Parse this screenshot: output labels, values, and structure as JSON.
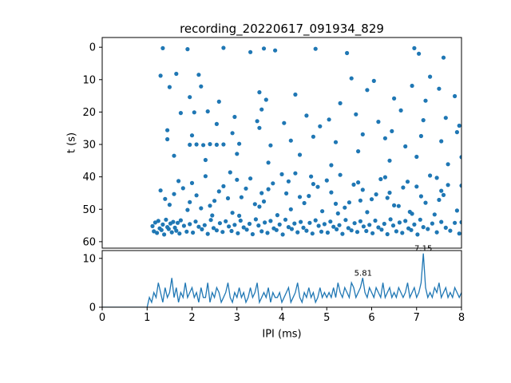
{
  "figure": {
    "background": "#ffffff"
  },
  "chart_data": [
    {
      "type": "scatter",
      "title": "recording_20220617_091934_829",
      "xlabel": "",
      "ylabel": "t (s)",
      "xlim": [
        0,
        8
      ],
      "ylim": [
        0,
        60
      ],
      "ylim_display": [
        -3,
        62
      ],
      "inverted_y": true,
      "color": "#1f77b4",
      "x_ticks": [
        0,
        1,
        2,
        3,
        4,
        5,
        6,
        7,
        8
      ],
      "y_ticks": [
        0,
        10,
        20,
        30,
        40,
        50,
        60
      ],
      "points": [
        [
          1.12,
          55.2
        ],
        [
          1.15,
          56.8
        ],
        [
          1.18,
          54.1
        ],
        [
          1.22,
          57.3
        ],
        [
          1.25,
          53.6
        ],
        [
          1.28,
          55.9
        ],
        [
          1.32,
          56.4
        ],
        [
          1.35,
          54.7
        ],
        [
          1.38,
          57.8
        ],
        [
          1.42,
          53.2
        ],
        [
          1.45,
          55.5
        ],
        [
          1.48,
          56.1
        ],
        [
          1.52,
          54.4
        ],
        [
          1.55,
          57.1
        ],
        [
          1.58,
          53.9
        ],
        [
          1.62,
          55.7
        ],
        [
          1.65,
          56.6
        ],
        [
          1.68,
          54.2
        ],
        [
          1.72,
          57.5
        ],
        [
          1.75,
          53.4
        ],
        [
          1.82,
          55.1
        ],
        [
          1.88,
          56.9
        ],
        [
          1.95,
          54.6
        ],
        [
          2.02,
          57.2
        ],
        [
          2.08,
          53.8
        ],
        [
          2.15,
          55.4
        ],
        [
          2.22,
          56.2
        ],
        [
          2.28,
          54.9
        ],
        [
          2.35,
          57.6
        ],
        [
          2.42,
          53.3
        ],
        [
          2.48,
          55.8
        ],
        [
          2.55,
          56.5
        ],
        [
          2.62,
          54.3
        ],
        [
          2.68,
          57.0
        ],
        [
          2.75,
          53.7
        ],
        [
          2.82,
          55.3
        ],
        [
          2.88,
          56.7
        ],
        [
          2.95,
          54.8
        ],
        [
          3.02,
          57.4
        ],
        [
          3.08,
          53.5
        ],
        [
          3.15,
          55.6
        ],
        [
          3.22,
          56.3
        ],
        [
          3.28,
          54.5
        ],
        [
          3.35,
          57.7
        ],
        [
          3.42,
          53.1
        ],
        [
          3.48,
          55.0
        ],
        [
          3.55,
          56.8
        ],
        [
          3.62,
          54.1
        ],
        [
          3.68,
          57.3
        ],
        [
          3.75,
          53.6
        ],
        [
          3.82,
          55.9
        ],
        [
          3.88,
          56.4
        ],
        [
          3.95,
          54.7
        ],
        [
          4.02,
          57.8
        ],
        [
          4.08,
          53.2
        ],
        [
          4.15,
          55.5
        ],
        [
          4.22,
          56.1
        ],
        [
          4.28,
          54.4
        ],
        [
          4.35,
          57.1
        ],
        [
          4.42,
          53.9
        ],
        [
          4.48,
          55.7
        ],
        [
          4.55,
          56.6
        ],
        [
          4.62,
          54.2
        ],
        [
          4.68,
          57.5
        ],
        [
          4.75,
          53.4
        ],
        [
          4.82,
          55.1
        ],
        [
          4.88,
          56.9
        ],
        [
          4.95,
          54.6
        ],
        [
          5.02,
          57.2
        ],
        [
          5.08,
          53.8
        ],
        [
          5.15,
          55.4
        ],
        [
          5.22,
          56.2
        ],
        [
          5.28,
          54.9
        ],
        [
          5.35,
          57.6
        ],
        [
          5.42,
          53.3
        ],
        [
          5.48,
          55.8
        ],
        [
          5.55,
          56.5
        ],
        [
          5.62,
          54.3
        ],
        [
          5.68,
          57.0
        ],
        [
          5.75,
          53.7
        ],
        [
          5.82,
          55.3
        ],
        [
          5.88,
          56.7
        ],
        [
          5.95,
          54.8
        ],
        [
          6.02,
          57.4
        ],
        [
          6.08,
          53.5
        ],
        [
          6.15,
          55.6
        ],
        [
          6.22,
          56.3
        ],
        [
          6.28,
          54.5
        ],
        [
          6.35,
          57.7
        ],
        [
          6.42,
          53.1
        ],
        [
          6.48,
          55.0
        ],
        [
          6.55,
          56.8
        ],
        [
          6.62,
          54.1
        ],
        [
          6.68,
          57.3
        ],
        [
          6.75,
          53.6
        ],
        [
          6.82,
          55.9
        ],
        [
          6.88,
          56.4
        ],
        [
          6.95,
          54.7
        ],
        [
          7.02,
          57.8
        ],
        [
          7.08,
          53.2
        ],
        [
          7.15,
          55.5
        ],
        [
          7.25,
          56.1
        ],
        [
          7.35,
          54.4
        ],
        [
          7.45,
          57.1
        ],
        [
          7.55,
          53.9
        ],
        [
          7.65,
          55.7
        ],
        [
          7.75,
          56.6
        ],
        [
          7.85,
          54.2
        ],
        [
          7.95,
          57.5
        ],
        [
          8.0,
          54.0
        ],
        [
          1.3,
          44.2
        ],
        [
          1.5,
          48.6
        ],
        [
          1.7,
          41.3
        ],
        [
          1.9,
          50.2
        ],
        [
          2.1,
          45.7
        ],
        [
          2.3,
          39.8
        ],
        [
          2.5,
          47.4
        ],
        [
          2.7,
          42.9
        ],
        [
          2.9,
          51.1
        ],
        [
          3.1,
          46.3
        ],
        [
          3.3,
          40.5
        ],
        [
          3.5,
          49.2
        ],
        [
          3.7,
          43.8
        ],
        [
          3.9,
          51.8
        ],
        [
          4.1,
          45.1
        ],
        [
          4.3,
          38.9
        ],
        [
          4.5,
          48.1
        ],
        [
          4.7,
          42.2
        ],
        [
          4.9,
          50.6
        ],
        [
          5.1,
          44.8
        ],
        [
          5.3,
          39.4
        ],
        [
          5.5,
          47.9
        ],
        [
          5.7,
          41.7
        ],
        [
          5.9,
          50.9
        ],
        [
          6.1,
          45.4
        ],
        [
          6.3,
          40.1
        ],
        [
          6.5,
          48.8
        ],
        [
          6.7,
          43.3
        ],
        [
          6.9,
          51.4
        ],
        [
          7.1,
          46.0
        ],
        [
          7.3,
          39.6
        ],
        [
          7.5,
          47.1
        ],
        [
          7.7,
          42.5
        ],
        [
          7.9,
          50.4
        ],
        [
          1.4,
          46.8
        ],
        [
          1.8,
          43.5
        ],
        [
          2.2,
          49.7
        ],
        [
          2.6,
          44.5
        ],
        [
          3.0,
          40.9
        ],
        [
          3.4,
          48.4
        ],
        [
          3.8,
          42.0
        ],
        [
          4.2,
          50.0
        ],
        [
          4.6,
          45.9
        ],
        [
          5.0,
          41.1
        ],
        [
          5.4,
          49.5
        ],
        [
          5.8,
          44.0
        ],
        [
          6.2,
          40.7
        ],
        [
          6.6,
          49.0
        ],
        [
          7.0,
          43.0
        ],
        [
          7.4,
          51.6
        ],
        [
          1.6,
          45.3
        ],
        [
          2.0,
          41.9
        ],
        [
          2.4,
          48.9
        ],
        [
          2.8,
          46.6
        ],
        [
          3.2,
          43.6
        ],
        [
          3.6,
          47.6
        ],
        [
          4.0,
          39.2
        ],
        [
          4.4,
          46.2
        ],
        [
          4.8,
          43.1
        ],
        [
          5.2,
          48.3
        ],
        [
          5.6,
          42.4
        ],
        [
          6.0,
          46.9
        ],
        [
          6.4,
          44.9
        ],
        [
          6.8,
          41.5
        ],
        [
          7.2,
          48.0
        ],
        [
          7.6,
          45.6
        ],
        [
          8.0,
          42.7
        ],
        [
          2.45,
          51.9
        ],
        [
          3.55,
          45.0
        ],
        [
          4.65,
          39.9
        ],
        [
          5.75,
          47.3
        ],
        [
          6.85,
          50.8
        ],
        [
          7.55,
          44.3
        ],
        [
          1.95,
          47.8
        ],
        [
          3.05,
          52.0
        ],
        [
          4.15,
          41.4
        ],
        [
          5.25,
          51.3
        ],
        [
          6.35,
          46.5
        ],
        [
          7.45,
          40.3
        ],
        [
          2.85,
          38.6
        ],
        [
          1.35,
          0.3
        ],
        [
          1.9,
          0.6
        ],
        [
          2.7,
          0.2
        ],
        [
          3.3,
          1.5
        ],
        [
          3.6,
          0.4
        ],
        [
          3.85,
          1.0
        ],
        [
          4.75,
          0.5
        ],
        [
          5.45,
          1.8
        ],
        [
          6.95,
          0.3
        ],
        [
          7.05,
          2.0
        ],
        [
          7.6,
          3.2
        ],
        [
          1.3,
          8.8
        ],
        [
          1.5,
          12.3
        ],
        [
          1.65,
          8.2
        ],
        [
          2.15,
          8.5
        ],
        [
          2.2,
          12.1
        ],
        [
          1.95,
          15.4
        ],
        [
          2.6,
          16.8
        ],
        [
          3.5,
          13.9
        ],
        [
          3.65,
          16.2
        ],
        [
          4.3,
          14.6
        ],
        [
          5.3,
          17.3
        ],
        [
          5.9,
          13.2
        ],
        [
          6.5,
          15.8
        ],
        [
          6.9,
          11.9
        ],
        [
          7.2,
          16.5
        ],
        [
          7.5,
          12.8
        ],
        [
          7.85,
          15.1
        ],
        [
          5.55,
          9.6
        ],
        [
          6.05,
          10.4
        ],
        [
          7.3,
          9.1
        ],
        [
          1.75,
          20.3
        ],
        [
          2.05,
          20.1
        ],
        [
          2.35,
          19.8
        ],
        [
          2.95,
          21.5
        ],
        [
          3.45,
          22.8
        ],
        [
          3.55,
          19.2
        ],
        [
          4.05,
          23.4
        ],
        [
          4.55,
          21.1
        ],
        [
          5.05,
          22.3
        ],
        [
          5.65,
          20.7
        ],
        [
          6.15,
          23.0
        ],
        [
          6.65,
          19.5
        ],
        [
          7.15,
          22.5
        ],
        [
          7.65,
          21.8
        ],
        [
          7.95,
          24.2
        ],
        [
          3.5,
          24.9
        ],
        [
          2.55,
          23.7
        ],
        [
          1.45,
          25.6
        ],
        [
          4.85,
          24.4
        ],
        [
          6.45,
          25.9
        ],
        [
          1.95,
          30.1
        ],
        [
          2.1,
          30.0
        ],
        [
          2.25,
          30.2
        ],
        [
          2.4,
          29.9
        ],
        [
          2.55,
          30.1
        ],
        [
          2.7,
          30.0
        ],
        [
          3.05,
          29.8
        ],
        [
          3.75,
          30.3
        ],
        [
          1.45,
          28.4
        ],
        [
          2.0,
          27.2
        ],
        [
          2.9,
          26.5
        ],
        [
          4.2,
          28.8
        ],
        [
          4.7,
          27.6
        ],
        [
          5.2,
          29.3
        ],
        [
          5.8,
          26.9
        ],
        [
          6.3,
          28.1
        ],
        [
          6.75,
          30.6
        ],
        [
          7.1,
          27.4
        ],
        [
          7.55,
          29.0
        ],
        [
          7.9,
          26.2
        ],
        [
          1.6,
          33.5
        ],
        [
          2.3,
          34.8
        ],
        [
          3.0,
          32.9
        ],
        [
          3.7,
          35.6
        ],
        [
          4.4,
          33.2
        ],
        [
          5.1,
          36.4
        ],
        [
          5.7,
          32.1
        ],
        [
          6.4,
          35.0
        ],
        [
          7.0,
          33.8
        ],
        [
          7.7,
          36.1
        ],
        [
          8.0,
          33.9
        ]
      ]
    },
    {
      "type": "line",
      "title": "",
      "xlabel": "IPI (ms)",
      "ylabel": "",
      "xlim": [
        0,
        8
      ],
      "ylim": [
        0,
        11.6
      ],
      "color": "#1f77b4",
      "x_ticks": [
        0,
        1,
        2,
        3,
        4,
        5,
        6,
        7,
        8
      ],
      "y_ticks": [
        0,
        10
      ],
      "x_start": 0,
      "x_step": 0.05,
      "y": [
        0,
        0,
        0,
        0,
        0,
        0,
        0,
        0,
        0,
        0,
        0,
        0,
        0,
        0,
        0,
        0,
        0,
        0,
        0,
        0,
        0,
        2,
        1,
        3,
        2,
        5,
        3,
        1,
        4,
        2,
        3,
        6,
        2,
        4,
        1,
        3,
        2,
        5,
        2,
        3,
        4,
        2,
        3,
        1,
        4,
        2,
        2,
        5,
        1,
        3,
        2,
        4,
        3,
        1,
        2,
        3,
        5,
        2,
        1,
        3,
        2,
        4,
        2,
        3,
        1,
        2,
        4,
        2,
        3,
        5,
        1,
        2,
        3,
        2,
        4,
        1,
        3,
        2,
        2,
        3,
        1,
        2,
        3,
        4,
        1,
        2,
        3,
        5,
        2,
        1,
        3,
        2,
        4,
        2,
        3,
        1,
        2,
        4,
        2,
        3,
        2,
        3,
        2,
        4,
        2,
        5,
        3,
        2,
        4,
        3,
        2,
        5,
        4,
        2,
        3,
        4,
        6,
        3,
        2,
        4,
        3,
        2,
        4,
        3,
        2,
        5,
        2,
        3,
        4,
        2,
        3,
        2,
        4,
        3,
        2,
        3,
        5,
        2,
        3,
        4,
        2,
        3,
        5,
        11,
        4,
        2,
        3,
        2,
        4,
        3,
        5,
        2,
        3,
        4,
        2,
        3,
        2,
        4,
        3,
        2,
        3
      ],
      "annotations": [
        {
          "x": 5.81,
          "y": 6,
          "label": "5.81"
        },
        {
          "x": 7.15,
          "y": 11,
          "label": "7.15"
        }
      ]
    }
  ]
}
